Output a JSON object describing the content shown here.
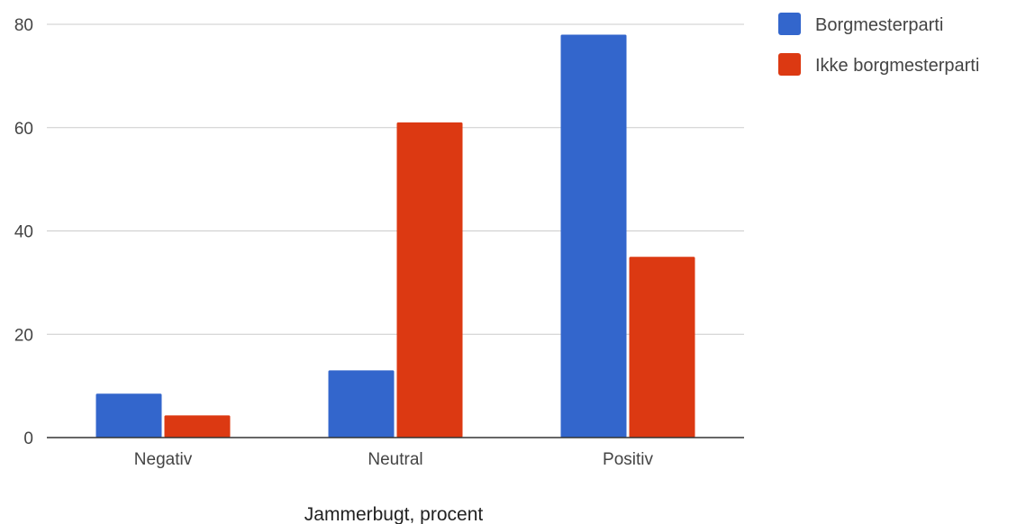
{
  "chart_data": {
    "type": "bar",
    "title": "",
    "xlabel": "Jammerbugt, procent",
    "ylabel": "",
    "categories": [
      "Negativ",
      "Neutral",
      "Positiv"
    ],
    "series": [
      {
        "name": "Borgmesterparti",
        "values": [
          8.5,
          13,
          78
        ],
        "color": "#3366cc"
      },
      {
        "name": "Ikke borgmesterparti",
        "values": [
          4.3,
          61,
          35
        ],
        "color": "#dc3912"
      }
    ],
    "ylim": [
      0,
      80
    ],
    "yticks": [
      0,
      20,
      40,
      60,
      80
    ],
    "grid": true,
    "legend_position": "right"
  }
}
